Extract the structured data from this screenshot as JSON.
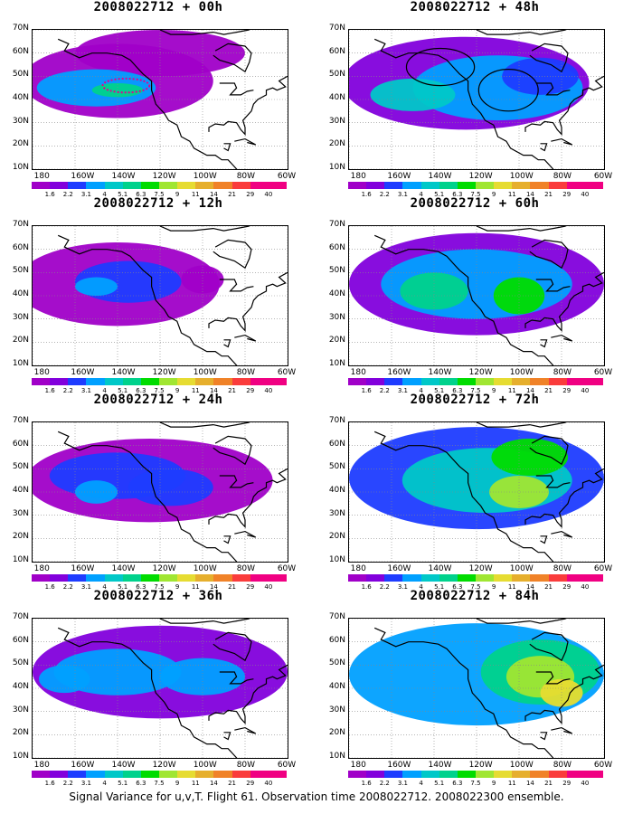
{
  "map_data": {
    "region": "North Pacific and North America",
    "lat_range": [
      "10N",
      "70N"
    ],
    "lon_range": [
      "180",
      "60W"
    ],
    "lat_labels": [
      "70N",
      "60N",
      "50N",
      "40N",
      "30N",
      "20N",
      "10N"
    ],
    "lon_labels": [
      "180",
      "160W",
      "140W",
      "120W",
      "100W",
      "80W",
      "60W"
    ],
    "gridlines": "dotted",
    "contour_levels": [
      "1.6",
      "2.2",
      "3.1",
      "4",
      "5.1",
      "6.3",
      "7.5",
      "9",
      "11",
      "14",
      "21",
      "29",
      "40"
    ],
    "colorbar_colors": [
      "#a000c8",
      "#8200dc",
      "#1e3cff",
      "#00a0ff",
      "#00c8c8",
      "#00d28c",
      "#00dc00",
      "#a0e632",
      "#e6dc32",
      "#e6af2d",
      "#f08228",
      "#fa3c3c",
      "#f00082"
    ],
    "panels": [
      {
        "title": "2008022712 + 00h",
        "annotation": "dotted magenta oval near 40-50N, 140-130W"
      },
      {
        "title": "2008022712 + 48h",
        "annotation": "two black circles near 50N 140W and 45N 105W"
      },
      {
        "title": "2008022712 + 12h",
        "annotation": ""
      },
      {
        "title": "2008022712 + 60h",
        "annotation": ""
      },
      {
        "title": "2008022712 + 24h",
        "annotation": ""
      },
      {
        "title": "2008022712 + 72h",
        "annotation": ""
      },
      {
        "title": "2008022712 + 36h",
        "annotation": ""
      },
      {
        "title": "2008022712 + 84h",
        "annotation": ""
      }
    ]
  },
  "footer": "Signal Variance for u,v,T. Flight 61. Observation time 2008022712. 2008022300 ensemble."
}
